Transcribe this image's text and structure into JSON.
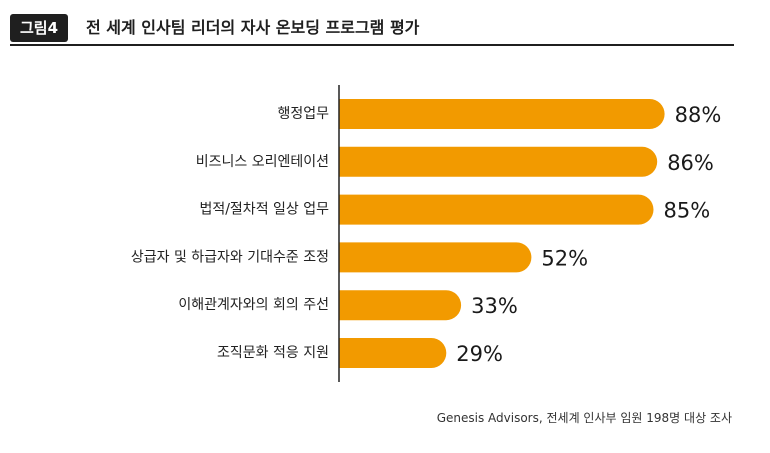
{
  "figure": {
    "badge": "그림4",
    "title": "전 세계 인사팀 리더의 자사 온보딩 프로그램 평가"
  },
  "source": "Genesis Advisors, 전세계 인사부 임원 198명 대상 조사",
  "colors": {
    "bar": "#f29a00",
    "header_dark": "#1f1f1f",
    "axis_line": "#222222"
  },
  "chart_data": {
    "type": "bar",
    "orientation": "horizontal",
    "categories": [
      "행정업무",
      "비즈니스 오리엔테이션",
      "법적/절차적 일상 업무",
      "상급자 및 하급자와 기대수준 조정",
      "이해관계자와의 회의 주선",
      "조직문화 적응 지원"
    ],
    "values": [
      88,
      86,
      85,
      52,
      33,
      29
    ],
    "value_labels": [
      "88%",
      "86%",
      "85%",
      "52%",
      "33%",
      "29%"
    ],
    "unit": "%",
    "xlim": [
      0,
      100
    ],
    "grid": false,
    "legend": "none"
  }
}
